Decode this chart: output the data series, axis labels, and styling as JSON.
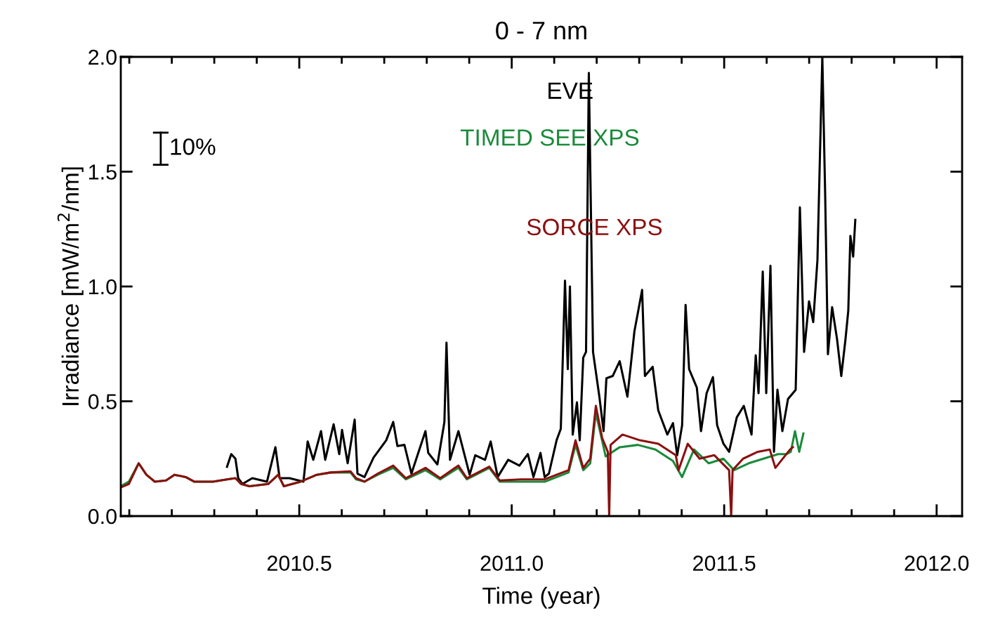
{
  "chart_data": {
    "type": "line",
    "title": "0 - 7 nm",
    "xlabel": "Time (year)",
    "ylabel": "Irradiance [mW/m$^{2}$/nm]",
    "xlim": [
      2010.08,
      2012.06
    ],
    "ylim": [
      0,
      2
    ],
    "xticks": [
      {
        "value": 2010.5,
        "label": "2010.5"
      },
      {
        "value": 2011.0,
        "label": "2011.0"
      },
      {
        "value": 2011.5,
        "label": "2011.5"
      },
      {
        "value": 2012.0,
        "label": "2012.0"
      }
    ],
    "yticks": [
      {
        "value": 0,
        "label": "0.0"
      },
      {
        "value": 0.5,
        "label": "0.5"
      },
      {
        "value": 1.0,
        "label": "1.0"
      },
      {
        "value": 1.5,
        "label": "1.5"
      },
      {
        "value": 2.0,
        "label": "2.0"
      }
    ],
    "grid": false,
    "legend": "top",
    "marker": "none",
    "line_style": "solid",
    "annotations": [
      "10%"
    ],
    "series": [
      {
        "name": "EVE",
        "color": "#000000",
        "x": [
          2010.33,
          2010.3399,
          2010.3498,
          2010.3564,
          2010.3663,
          2010.3894,
          2010.4241,
          2010.4439,
          2010.4538,
          2010.4769,
          2010.5099,
          2010.5198,
          2010.533,
          2010.5512,
          2010.5611,
          2010.5809,
          2010.5941,
          2010.6007,
          2010.6139,
          2010.6304,
          2010.637,
          2010.6535,
          2010.6749,
          2010.7046,
          2010.7211,
          2010.731,
          2010.7475,
          2010.764,
          2010.797,
          2010.8036,
          2010.8251,
          2010.8416,
          2010.8465,
          2010.8548,
          2010.8746,
          2010.8878,
          2010.901,
          2010.9142,
          2010.9373,
          2010.9505,
          2010.967,
          2010.9917,
          2011.0182,
          2011.038,
          2011.0512,
          2011.0677,
          2011.0776,
          2011.0875,
          2011.1056,
          2011.1155,
          2011.1254,
          2011.132,
          2011.137,
          2011.1436,
          2011.1535,
          2011.1601,
          2011.1683,
          2011.1749,
          2011.1815,
          2011.1914,
          2011.2063,
          2011.2162,
          2011.2228,
          2011.2376,
          2011.2541,
          2011.2723,
          2011.2888,
          2011.3069,
          2011.3135,
          2011.3317,
          2011.3449,
          2011.3663,
          2011.3795,
          2011.3894,
          2011.401,
          2011.4092,
          2011.4175,
          2011.4356,
          2011.4455,
          2011.4587,
          2011.4736,
          2011.4835,
          2011.4983,
          2011.5116,
          2011.5297,
          2011.5462,
          2011.5644,
          2011.5743,
          2011.5809,
          2011.5908,
          2011.599,
          2011.6089,
          2011.6172,
          2011.6254,
          2011.637,
          2011.6502,
          2011.6683,
          2011.6782,
          2011.6881,
          2011.6997,
          2011.7096,
          2011.7195,
          2011.731,
          2011.7376,
          2011.7442,
          2011.7541,
          2011.7657,
          2011.7756,
          2011.7855,
          2011.7921,
          2011.797,
          2011.8036,
          2011.8086
        ],
        "values": [
          0.215,
          0.27,
          0.25,
          0.165,
          0.14,
          0.165,
          0.15,
          0.3,
          0.165,
          0.165,
          0.15,
          0.325,
          0.245,
          0.37,
          0.245,
          0.4,
          0.27,
          0.375,
          0.23,
          0.42,
          0.185,
          0.17,
          0.255,
          0.33,
          0.41,
          0.305,
          0.31,
          0.185,
          0.37,
          0.275,
          0.225,
          0.41,
          0.755,
          0.245,
          0.37,
          0.275,
          0.18,
          0.265,
          0.245,
          0.325,
          0.17,
          0.245,
          0.22,
          0.27,
          0.17,
          0.275,
          0.17,
          0.185,
          0.33,
          0.38,
          1.025,
          0.64,
          1.0,
          0.355,
          0.495,
          0.33,
          0.69,
          0.715,
          1.93,
          0.715,
          0.52,
          0.37,
          0.6,
          0.61,
          0.675,
          0.52,
          0.805,
          0.985,
          0.61,
          0.65,
          0.46,
          0.355,
          0.405,
          0.265,
          0.395,
          0.92,
          0.64,
          0.56,
          0.37,
          0.535,
          0.605,
          0.395,
          0.315,
          0.28,
          0.43,
          0.48,
          0.355,
          0.7,
          0.535,
          1.065,
          0.535,
          1.09,
          0.28,
          0.55,
          0.37,
          0.51,
          0.55,
          1.345,
          0.715,
          0.935,
          0.845,
          1.115,
          2.0,
          1.41,
          0.705,
          0.91,
          0.77,
          0.61,
          0.77,
          0.895,
          1.22,
          1.13,
          1.29
        ]
      },
      {
        "name": "TIMED SEE XPS",
        "color": "#1a8a3a",
        "x": [
          2010.08,
          2010.099,
          2010.1221,
          2010.1403,
          2010.1601,
          2010.1865,
          2010.2063,
          2010.2327,
          2010.2525,
          2010.297,
          2010.33,
          2010.3498,
          2010.363,
          2010.3828,
          2010.4274,
          2010.4505,
          2010.4637,
          2010.5033,
          2010.5413,
          2010.5743,
          2010.6205,
          2010.6337,
          2010.6535,
          2010.6848,
          2010.7211,
          2010.7508,
          2010.797,
          2010.8317,
          2010.8746,
          2010.8944,
          2010.9472,
          2010.9719,
          2011.0215,
          2011.0776,
          2011.1337,
          2011.1502,
          2011.1683,
          2011.1848,
          2011.198,
          2011.2211,
          2011.2541,
          2011.297,
          2011.3383,
          2011.3795,
          2011.401,
          2011.429,
          2011.4637,
          2011.4983,
          2011.5231,
          2011.5578,
          2011.5924,
          2011.6271,
          2011.6469,
          2011.6568,
          2011.6667,
          2011.6766,
          2011.6865
        ],
        "values": [
          0.13,
          0.15,
          0.23,
          0.18,
          0.15,
          0.155,
          0.18,
          0.17,
          0.15,
          0.15,
          0.16,
          0.165,
          0.14,
          0.13,
          0.14,
          0.18,
          0.13,
          0.15,
          0.18,
          0.19,
          0.19,
          0.16,
          0.15,
          0.18,
          0.21,
          0.16,
          0.2,
          0.16,
          0.21,
          0.16,
          0.21,
          0.15,
          0.15,
          0.15,
          0.19,
          0.31,
          0.2,
          0.23,
          0.45,
          0.26,
          0.3,
          0.31,
          0.29,
          0.24,
          0.17,
          0.29,
          0.23,
          0.25,
          0.2,
          0.23,
          0.25,
          0.27,
          0.27,
          0.28,
          0.37,
          0.28,
          0.36
        ]
      },
      {
        "name": "SORCE XPS",
        "color": "#8b1010",
        "x": [
          2010.08,
          2010.099,
          2010.1221,
          2010.1403,
          2010.1601,
          2010.1865,
          2010.2063,
          2010.2327,
          2010.2525,
          2010.297,
          2010.33,
          2010.3498,
          2010.363,
          2010.3828,
          2010.4274,
          2010.4505,
          2010.4637,
          2010.5033,
          2010.5413,
          2010.5743,
          2010.6205,
          2010.6337,
          2010.6535,
          2010.6848,
          2010.7211,
          2010.7508,
          2010.797,
          2010.8317,
          2010.8746,
          2010.8944,
          2010.9472,
          2010.9719,
          2011.0215,
          2011.0776,
          2011.1337,
          2011.1502,
          2011.1683,
          2011.1848,
          2011.198,
          2011.2129,
          2011.2261,
          2011.2294,
          2011.2327,
          2011.2607,
          2011.302,
          2011.3449,
          2011.3861,
          2011.3927,
          2011.4142,
          2011.4422,
          2011.4769,
          2011.5116,
          2011.5165,
          2011.5198,
          2011.5446,
          2011.5792,
          2011.6073,
          2011.6205,
          2011.6551,
          2011.6617
        ],
        "values": [
          0.125,
          0.14,
          0.23,
          0.18,
          0.15,
          0.155,
          0.18,
          0.17,
          0.15,
          0.15,
          0.16,
          0.165,
          0.14,
          0.13,
          0.14,
          0.18,
          0.13,
          0.15,
          0.18,
          0.19,
          0.195,
          0.165,
          0.15,
          0.185,
          0.22,
          0.165,
          0.21,
          0.165,
          0.22,
          0.165,
          0.215,
          0.155,
          0.16,
          0.16,
          0.2,
          0.33,
          0.21,
          0.25,
          0.48,
          0.34,
          0.28,
          0.0,
          0.31,
          0.355,
          0.33,
          0.315,
          0.265,
          0.2,
          0.315,
          0.25,
          0.265,
          0.2,
          0.0,
          0.2,
          0.25,
          0.28,
          0.29,
          0.21,
          0.29,
          0.3
        ]
      }
    ]
  }
}
